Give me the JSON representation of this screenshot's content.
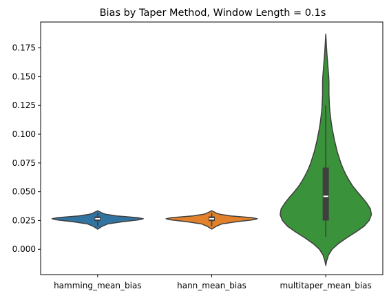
{
  "chart_data": {
    "type": "violin",
    "title": "Bias by Taper Method, Window Length = 0.1s",
    "xlabel": "",
    "ylabel": "",
    "ylim": [
      -0.022,
      0.1975
    ],
    "yticks": [
      0.0,
      0.025,
      0.05,
      0.075,
      0.1,
      0.125,
      0.15,
      0.175
    ],
    "ytick_labels": [
      "0.000",
      "0.025",
      "0.050",
      "0.075",
      "0.100",
      "0.125",
      "0.150",
      "0.175"
    ],
    "grid": false,
    "categories": [
      "hamming_mean_bias",
      "hann_mean_bias",
      "multitaper_mean_bias"
    ],
    "series": [
      {
        "category": "hamming_mean_bias",
        "color": "#3274a1",
        "min": 0.0175,
        "max": 0.0335,
        "q1": 0.0245,
        "median": 0.0265,
        "q3": 0.0285,
        "whisker_low": 0.02,
        "whisker_high": 0.0315,
        "density": [
          [
            0.0175,
            0.0
          ],
          [
            0.0185,
            0.04
          ],
          [
            0.02,
            0.1
          ],
          [
            0.022,
            0.22
          ],
          [
            0.024,
            0.55
          ],
          [
            0.0255,
            0.88
          ],
          [
            0.0265,
            1.0
          ],
          [
            0.0275,
            0.88
          ],
          [
            0.029,
            0.42
          ],
          [
            0.0305,
            0.17
          ],
          [
            0.0315,
            0.1
          ],
          [
            0.0325,
            0.05
          ],
          [
            0.0335,
            0.0
          ]
        ]
      },
      {
        "category": "hann_mean_bias",
        "color": "#e1812c",
        "min": 0.0175,
        "max": 0.0335,
        "q1": 0.0245,
        "median": 0.0265,
        "q3": 0.0285,
        "whisker_low": 0.02,
        "whisker_high": 0.0315,
        "density": [
          [
            0.0175,
            0.0
          ],
          [
            0.0185,
            0.04
          ],
          [
            0.02,
            0.1
          ],
          [
            0.022,
            0.22
          ],
          [
            0.024,
            0.55
          ],
          [
            0.0255,
            0.88
          ],
          [
            0.0265,
            1.0
          ],
          [
            0.0275,
            0.88
          ],
          [
            0.029,
            0.42
          ],
          [
            0.0305,
            0.17
          ],
          [
            0.0315,
            0.1
          ],
          [
            0.0325,
            0.05
          ],
          [
            0.0335,
            0.0
          ]
        ]
      },
      {
        "category": "multitaper_mean_bias",
        "color": "#3a923a",
        "min": -0.014,
        "max": 0.187,
        "q1": 0.025,
        "median": 0.046,
        "q3": 0.071,
        "whisker_low": 0.011,
        "whisker_high": 0.125,
        "density": [
          [
            -0.014,
            0.0
          ],
          [
            -0.01,
            0.02
          ],
          [
            -0.005,
            0.06
          ],
          [
            0.0,
            0.14
          ],
          [
            0.005,
            0.28
          ],
          [
            0.01,
            0.46
          ],
          [
            0.015,
            0.66
          ],
          [
            0.02,
            0.84
          ],
          [
            0.025,
            0.95
          ],
          [
            0.03,
            1.0
          ],
          [
            0.035,
            0.98
          ],
          [
            0.04,
            0.9
          ],
          [
            0.045,
            0.8
          ],
          [
            0.05,
            0.69
          ],
          [
            0.055,
            0.59
          ],
          [
            0.06,
            0.51
          ],
          [
            0.065,
            0.44
          ],
          [
            0.07,
            0.38
          ],
          [
            0.075,
            0.33
          ],
          [
            0.08,
            0.29
          ],
          [
            0.085,
            0.25
          ],
          [
            0.09,
            0.22
          ],
          [
            0.095,
            0.19
          ],
          [
            0.1,
            0.165
          ],
          [
            0.105,
            0.14
          ],
          [
            0.11,
            0.12
          ],
          [
            0.115,
            0.105
          ],
          [
            0.12,
            0.09
          ],
          [
            0.125,
            0.08
          ],
          [
            0.13,
            0.075
          ],
          [
            0.135,
            0.07
          ],
          [
            0.14,
            0.07
          ],
          [
            0.145,
            0.07
          ],
          [
            0.15,
            0.065
          ],
          [
            0.155,
            0.055
          ],
          [
            0.16,
            0.045
          ],
          [
            0.165,
            0.035
          ],
          [
            0.17,
            0.025
          ],
          [
            0.175,
            0.017
          ],
          [
            0.18,
            0.01
          ],
          [
            0.187,
            0.0
          ]
        ]
      }
    ]
  }
}
